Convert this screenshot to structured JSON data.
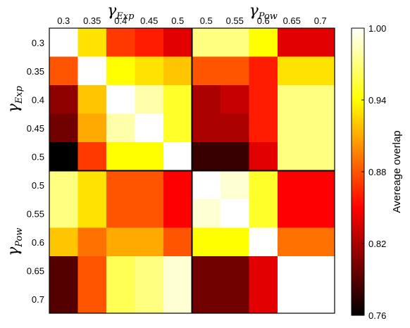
{
  "chart_data": {
    "type": "heatmap",
    "tick_labels": [
      "0.3",
      "0.35",
      "0.4",
      "0.45",
      "0.5",
      "0.5",
      "0.55",
      "0.6",
      "0.65",
      "0.7"
    ],
    "group_labels": [
      {
        "base": "γ",
        "sub": "Exp"
      },
      {
        "base": "γ",
        "sub": "Pow"
      }
    ],
    "values": [
      [
        1.0,
        0.93,
        0.87,
        0.86,
        0.84,
        0.97,
        0.97,
        0.94,
        0.84,
        0.84
      ],
      [
        0.88,
        1.0,
        0.94,
        0.93,
        0.92,
        0.88,
        0.88,
        0.86,
        0.93,
        0.93
      ],
      [
        0.81,
        0.92,
        1.0,
        0.98,
        0.95,
        0.82,
        0.83,
        0.86,
        0.97,
        0.97
      ],
      [
        0.8,
        0.91,
        0.98,
        1.0,
        0.95,
        0.82,
        0.82,
        0.86,
        0.97,
        0.97
      ],
      [
        0.76,
        0.87,
        0.94,
        0.94,
        1.0,
        0.78,
        0.78,
        0.84,
        0.97,
        0.97
      ],
      [
        0.97,
        0.93,
        0.88,
        0.88,
        0.85,
        1.0,
        0.99,
        0.95,
        0.85,
        0.85
      ],
      [
        0.97,
        0.93,
        0.88,
        0.88,
        0.85,
        0.99,
        1.0,
        0.95,
        0.85,
        0.85
      ],
      [
        0.92,
        0.89,
        0.91,
        0.91,
        0.88,
        0.94,
        0.94,
        1.0,
        0.89,
        0.89
      ],
      [
        0.79,
        0.88,
        0.96,
        0.97,
        0.99,
        0.8,
        0.8,
        0.84,
        1.0,
        1.0
      ],
      [
        0.79,
        0.88,
        0.96,
        0.97,
        0.99,
        0.8,
        0.8,
        0.84,
        1.0,
        1.0
      ]
    ],
    "colorbar": {
      "label": "Avereage overlap",
      "range": [
        0.76,
        1.0
      ],
      "ticks": [
        "1.00",
        "0.94",
        "0.88",
        "0.82",
        "0.76"
      ],
      "tick_values": [
        1.0,
        0.94,
        0.88,
        0.82,
        0.76
      ],
      "colormap": "hot"
    },
    "block_boundary_after_index": 4
  }
}
